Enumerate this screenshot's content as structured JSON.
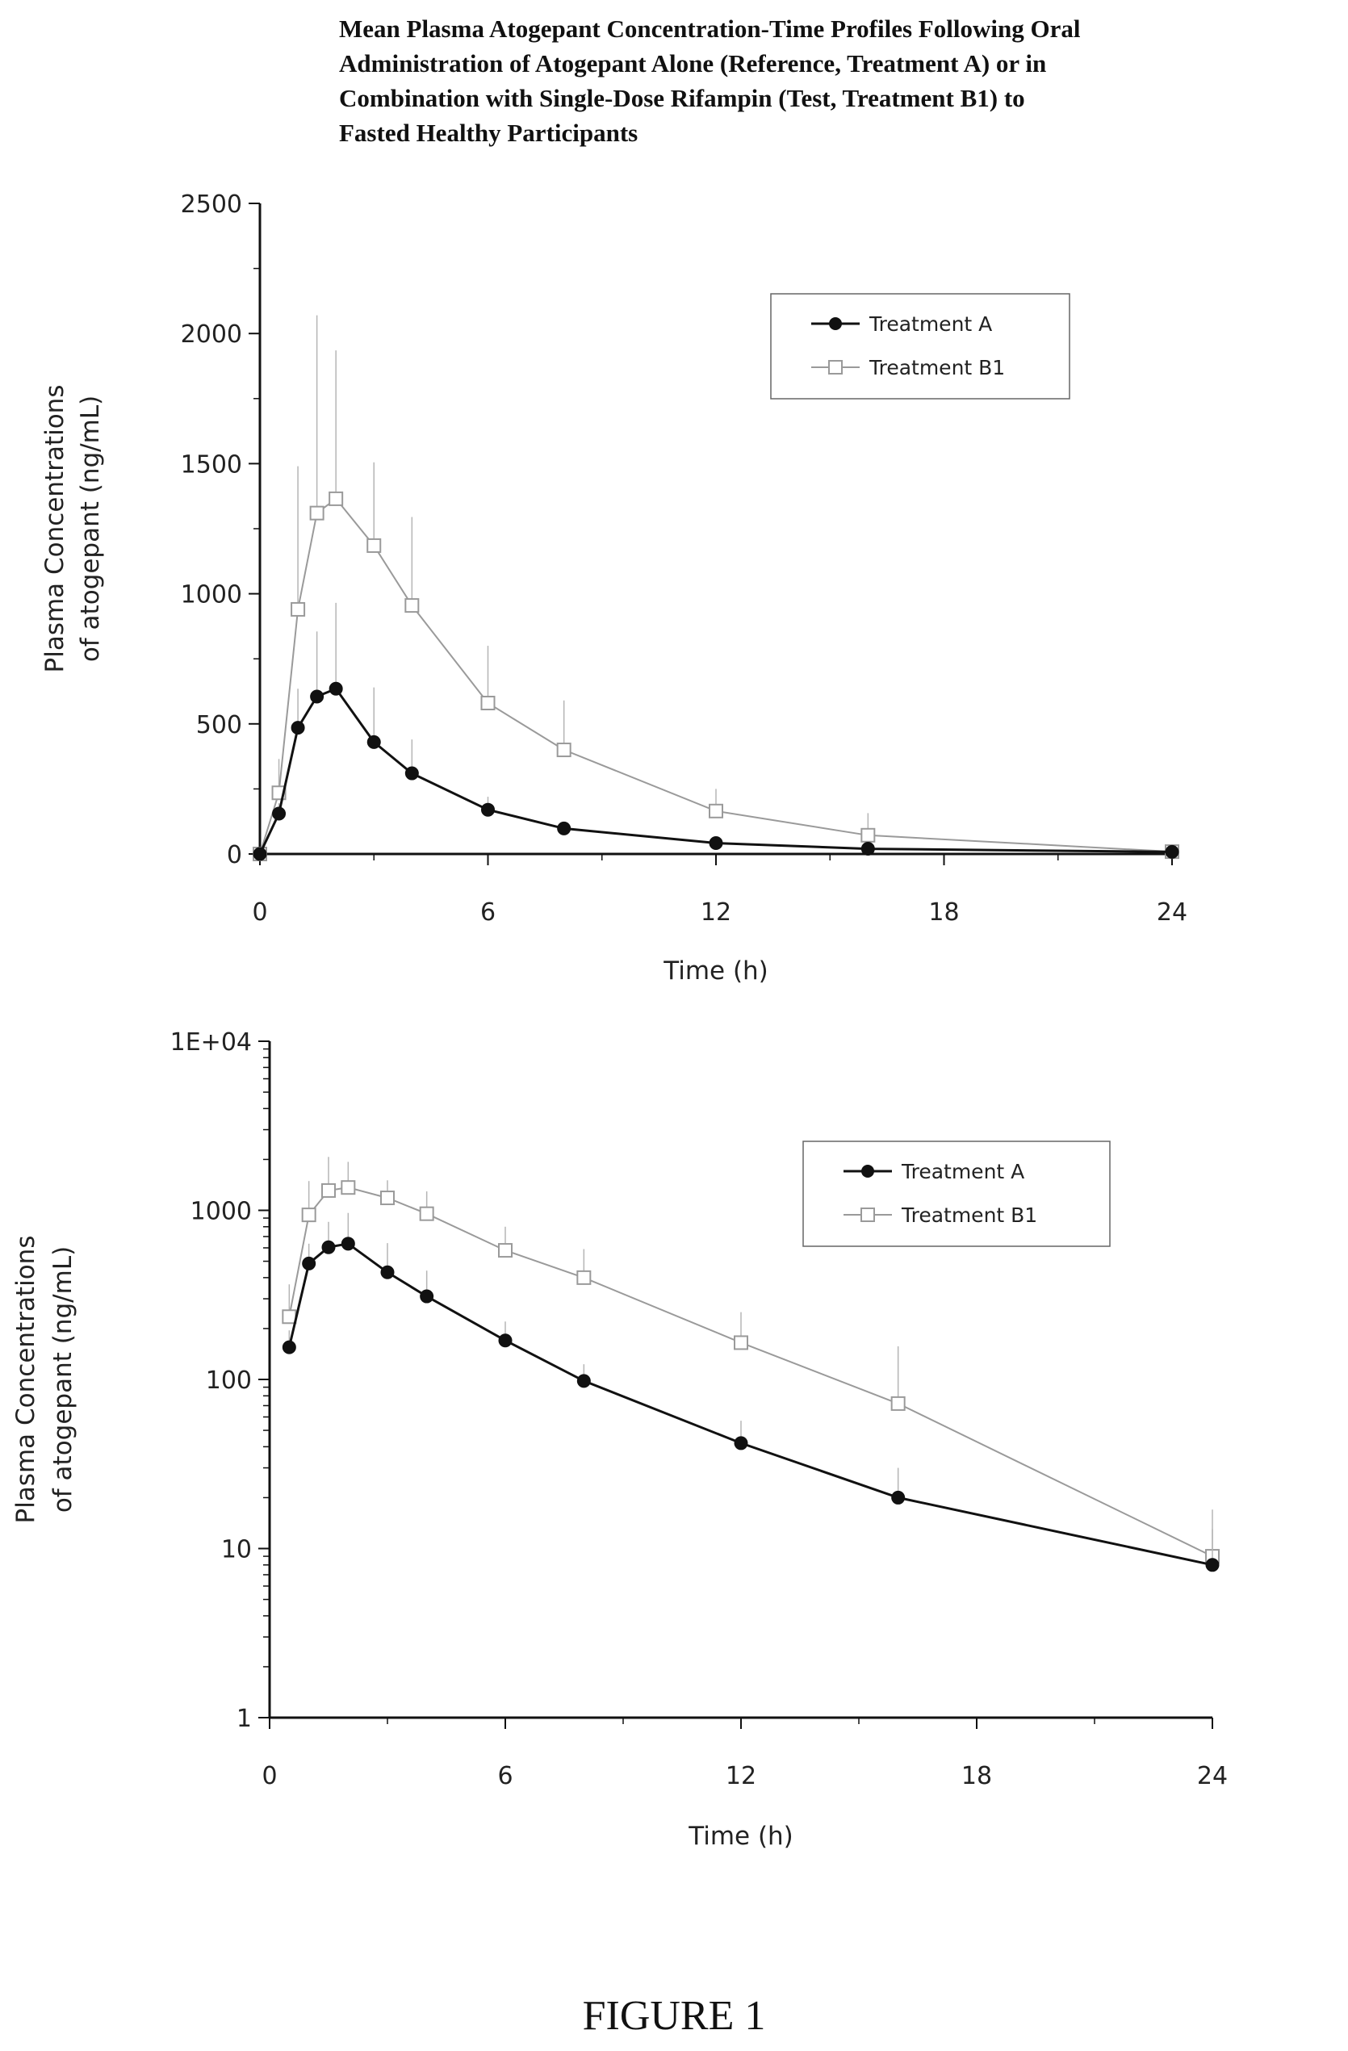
{
  "title_lines": [
    "Mean Plasma Atogepant Concentration-Time Profiles Following Oral",
    "Administration of Atogepant Alone (Reference, Treatment A) or in",
    "Combination with Single-Dose Rifampin (Test, Treatment B1) to",
    "Fasted Healthy Participants"
  ],
  "figure_caption": "FIGURE 1",
  "colors": {
    "treatment_a": "#111111",
    "treatment_b1": "#9a9a9a",
    "axis": "#111111",
    "error_bar": "#b5b5b5"
  },
  "chart_data": [
    {
      "type": "line",
      "scale": "linear",
      "xlabel": "Time (h)",
      "ylabel_lines": [
        "Plasma Concentrations",
        "of atogepant (ng/mL)"
      ],
      "xlim": [
        0,
        24
      ],
      "ylim": [
        0,
        2500
      ],
      "xticks": [
        0,
        6,
        12,
        18,
        24
      ],
      "yticks": [
        0,
        500,
        1000,
        1500,
        2000,
        2500
      ],
      "ytick_labels": [
        "0",
        "500",
        "1000",
        "1500",
        "2000",
        "2500"
      ],
      "legend_position": "top-right",
      "x": [
        0,
        0.5,
        1,
        1.5,
        2,
        3,
        4,
        6,
        8,
        12,
        16,
        24
      ],
      "series": [
        {
          "name": "Treatment A",
          "marker": "filled-circle",
          "values": [
            0,
            155,
            485,
            605,
            635,
            430,
            310,
            170,
            98,
            42,
            20,
            8
          ],
          "error": [
            0,
            40,
            150,
            250,
            330,
            210,
            130,
            50,
            25,
            15,
            10,
            5
          ]
        },
        {
          "name": "Treatment B1",
          "marker": "open-square",
          "values": [
            0,
            235,
            940,
            1310,
            1365,
            1185,
            955,
            580,
            400,
            165,
            72,
            9
          ],
          "error": [
            0,
            130,
            550,
            760,
            570,
            320,
            340,
            220,
            190,
            85,
            85,
            8
          ]
        }
      ]
    },
    {
      "type": "line",
      "scale": "log",
      "xlabel": "Time (h)",
      "ylabel_lines": [
        "Plasma Concentrations",
        "of atogepant (ng/mL)"
      ],
      "xlim": [
        0,
        24
      ],
      "ylim": [
        1,
        10000
      ],
      "xticks": [
        0,
        6,
        12,
        18,
        24
      ],
      "yticks": [
        1,
        10,
        100,
        1000,
        10000
      ],
      "ytick_labels": [
        "1",
        "10",
        "100",
        "1000",
        "1E+04"
      ],
      "legend_position": "top-right",
      "x": [
        0.5,
        1,
        1.5,
        2,
        3,
        4,
        6,
        8,
        12,
        16,
        24
      ],
      "series": [
        {
          "name": "Treatment A",
          "marker": "filled-circle",
          "values": [
            155,
            485,
            605,
            635,
            430,
            310,
            170,
            98,
            42,
            20,
            8
          ],
          "error": [
            40,
            150,
            250,
            330,
            210,
            130,
            50,
            25,
            15,
            10,
            5
          ]
        },
        {
          "name": "Treatment B1",
          "marker": "open-square",
          "values": [
            235,
            940,
            1310,
            1365,
            1185,
            955,
            580,
            400,
            165,
            72,
            9
          ],
          "error": [
            130,
            550,
            760,
            570,
            320,
            340,
            220,
            190,
            85,
            85,
            8
          ]
        }
      ]
    }
  ]
}
